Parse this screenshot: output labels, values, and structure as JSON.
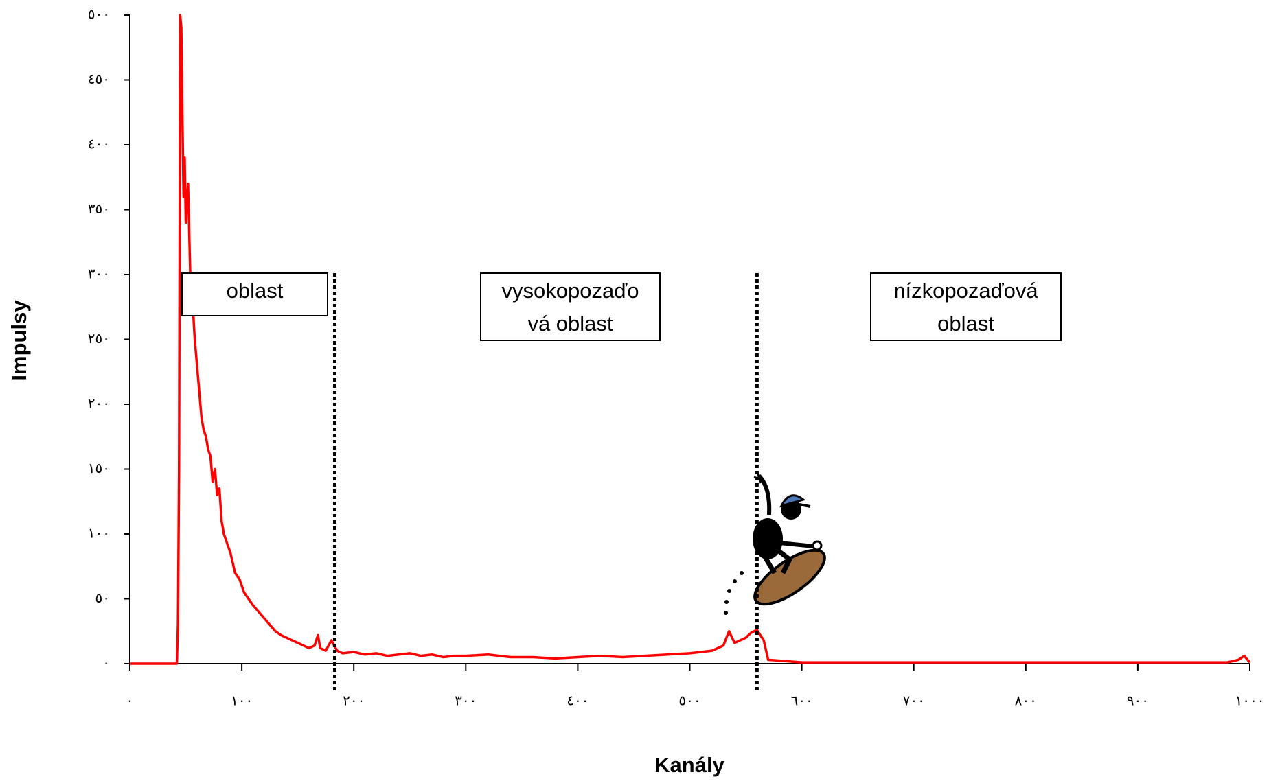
{
  "chart_data": {
    "type": "line",
    "xlabel": "Kanály",
    "ylabel": "Impulsy",
    "color": "#ff0000",
    "xlim": [
      0,
      1000
    ],
    "ylim": [
      0,
      500
    ],
    "xticks": [
      {
        "value": 0,
        "label": "٠"
      },
      {
        "value": 100,
        "label": "١٠٠"
      },
      {
        "value": 200,
        "label": "٢٠٠"
      },
      {
        "value": 300,
        "label": "٣٠٠"
      },
      {
        "value": 400,
        "label": "٤٠٠"
      },
      {
        "value": 500,
        "label": "٥٠٠"
      },
      {
        "value": 600,
        "label": "٦٠٠"
      },
      {
        "value": 700,
        "label": "٧٠٠"
      },
      {
        "value": 800,
        "label": "٨٠٠"
      },
      {
        "value": 900,
        "label": "٩٠٠"
      },
      {
        "value": 1000,
        "label": "١٠٠٠"
      }
    ],
    "yticks": [
      {
        "value": 0,
        "label": "٠"
      },
      {
        "value": 50,
        "label": "٥٠"
      },
      {
        "value": 100,
        "label": "١٠٠"
      },
      {
        "value": 150,
        "label": "١٥٠"
      },
      {
        "value": 200,
        "label": "٢٠٠"
      },
      {
        "value": 250,
        "label": "٢٥٠"
      },
      {
        "value": 300,
        "label": "٣٠٠"
      },
      {
        "value": 350,
        "label": "٣٥٠"
      },
      {
        "value": 400,
        "label": "٤٠٠"
      },
      {
        "value": 450,
        "label": "٤٥٠"
      },
      {
        "value": 500,
        "label": "٥٠٠"
      }
    ],
    "vlines": [
      183,
      560
    ],
    "annotations": [
      {
        "lines": [
          "oblast"
        ]
      },
      {
        "lines": [
          "vysokopozaďo",
          "vá oblast"
        ]
      },
      {
        "lines": [
          "nízkopozaďová",
          "oblast"
        ]
      }
    ],
    "x": [
      0,
      42,
      43,
      44,
      45,
      46,
      47,
      48,
      49,
      50,
      52,
      54,
      56,
      58,
      60,
      62,
      64,
      66,
      68,
      70,
      72,
      74,
      76,
      78,
      80,
      82,
      84,
      86,
      88,
      90,
      94,
      98,
      102,
      106,
      110,
      115,
      120,
      125,
      130,
      135,
      140,
      145,
      150,
      155,
      160,
      165,
      168,
      170,
      175,
      180,
      185,
      190,
      200,
      210,
      220,
      230,
      240,
      250,
      260,
      270,
      280,
      290,
      300,
      320,
      340,
      360,
      380,
      400,
      420,
      440,
      460,
      480,
      500,
      510,
      520,
      530,
      535,
      540,
      545,
      550,
      555,
      560,
      563,
      566,
      570,
      600,
      650,
      700,
      750,
      800,
      850,
      900,
      950,
      980,
      990,
      995,
      1000
    ],
    "values": [
      0,
      0,
      30,
      150,
      500,
      490,
      420,
      360,
      390,
      340,
      370,
      300,
      280,
      250,
      230,
      210,
      190,
      180,
      175,
      165,
      160,
      140,
      150,
      130,
      135,
      110,
      100,
      95,
      90,
      85,
      70,
      65,
      55,
      50,
      45,
      40,
      35,
      30,
      25,
      22,
      20,
      18,
      16,
      14,
      12,
      14,
      22,
      12,
      10,
      18,
      10,
      8,
      9,
      7,
      8,
      6,
      7,
      8,
      6,
      7,
      5,
      6,
      6,
      7,
      5,
      5,
      4,
      5,
      6,
      5,
      6,
      7,
      8,
      9,
      10,
      14,
      25,
      16,
      18,
      20,
      24,
      26,
      22,
      18,
      3,
      1,
      1,
      1,
      1,
      1,
      1,
      1,
      1,
      1,
      3,
      6,
      1
    ]
  }
}
